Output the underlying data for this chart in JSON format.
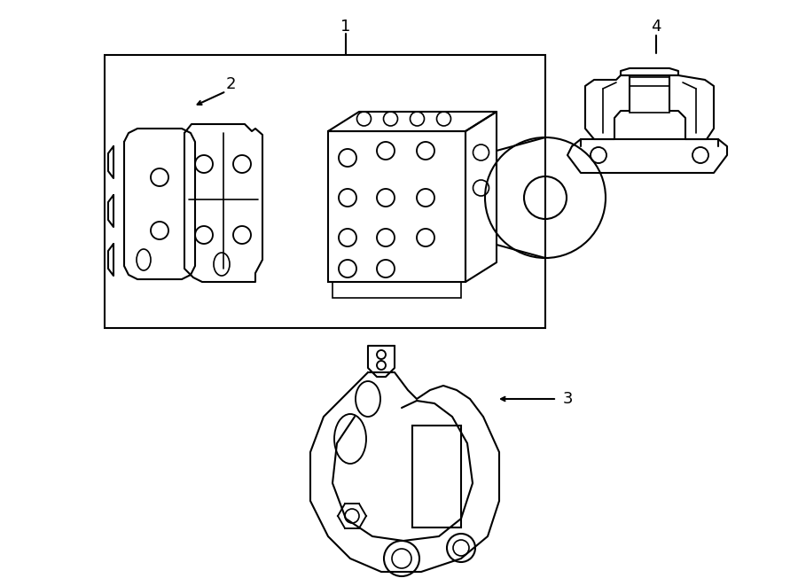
{
  "background_color": "#ffffff",
  "line_color": "#000000",
  "line_width": 1.5,
  "fig_width": 9.0,
  "fig_height": 6.61,
  "dpi": 100
}
